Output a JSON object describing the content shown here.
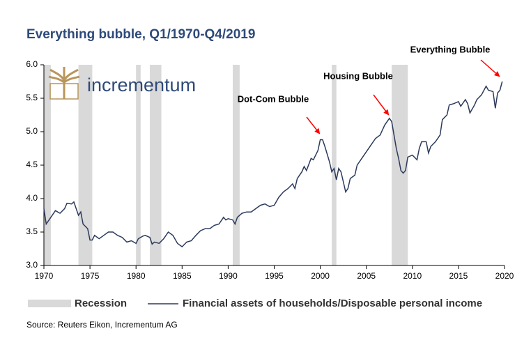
{
  "chart_data": {
    "type": "line",
    "title": "Everything bubble, Q1/1970-Q4/2019",
    "logo": "incrementum",
    "source": "Source: Reuters Eikon, Incrementum AG",
    "xlim": [
      1970,
      2020
    ],
    "xticks": [
      1970,
      1975,
      1980,
      1985,
      1990,
      1995,
      2000,
      2005,
      2010,
      2015,
      2020
    ],
    "ylim": [
      3,
      6
    ],
    "yticks": [
      {
        "value": 3,
        "label": "3.0"
      },
      {
        "value": 3.5,
        "label": "3.5"
      },
      {
        "value": 4,
        "label": "4.0"
      },
      {
        "value": 4.5,
        "label": "4.5"
      },
      {
        "value": 5,
        "label": "5.0"
      },
      {
        "value": 5.5,
        "label": "5.5"
      },
      {
        "value": 6,
        "label": "6.0"
      }
    ],
    "recession_name": "Recession",
    "recession_color": "#d9d9d9",
    "recessions": [
      [
        1970.0,
        1970.75
      ],
      [
        1973.75,
        1975.25
      ],
      [
        1980.0,
        1980.5
      ],
      [
        1981.5,
        1982.75
      ],
      [
        1990.5,
        1991.25
      ],
      [
        2001.25,
        2001.75
      ],
      [
        2007.75,
        2009.5
      ]
    ],
    "annotations": [
      "Dot-Com Bubble",
      "Housing Bubble",
      "Everything Bubble"
    ],
    "annotation_color": "#ff0000",
    "series": [
      {
        "name": "Financial assets of households/Disposable personal income",
        "color": "#2b3a5c",
        "x": [
          1970.0,
          1970.25,
          1970.75,
          1971.25,
          1971.75,
          1972.25,
          1972.5,
          1973.0,
          1973.25,
          1973.5,
          1973.75,
          1974.0,
          1974.25,
          1974.75,
          1975.0,
          1975.25,
          1975.5,
          1976.0,
          1976.5,
          1977.0,
          1977.5,
          1978.0,
          1978.5,
          1979.0,
          1979.5,
          1980.0,
          1980.25,
          1980.75,
          1981.0,
          1981.5,
          1981.75,
          1982.0,
          1982.5,
          1983.0,
          1983.5,
          1984.0,
          1984.5,
          1985.0,
          1985.5,
          1986.0,
          1986.5,
          1987.0,
          1987.5,
          1988.0,
          1988.5,
          1989.0,
          1989.5,
          1989.75,
          1990.0,
          1990.5,
          1990.75,
          1991.0,
          1991.5,
          1992.0,
          1992.5,
          1993.0,
          1993.5,
          1994.0,
          1994.5,
          1995.0,
          1995.5,
          1996.0,
          1996.5,
          1997.0,
          1997.25,
          1997.5,
          1998.0,
          1998.25,
          1998.5,
          1999.0,
          1999.25,
          1999.5,
          1999.75,
          2000.0,
          2000.25,
          2000.5,
          2001.0,
          2001.25,
          2001.5,
          2001.75,
          2002.0,
          2002.25,
          2002.5,
          2002.75,
          2003.0,
          2003.25,
          2003.75,
          2004.0,
          2004.5,
          2005.0,
          2005.5,
          2006.0,
          2006.5,
          2007.0,
          2007.5,
          2007.75,
          2008.0,
          2008.25,
          2008.5,
          2008.75,
          2009.0,
          2009.25,
          2009.5,
          2010.0,
          2010.5,
          2010.75,
          2011.0,
          2011.5,
          2011.75,
          2012.0,
          2012.5,
          2013.0,
          2013.25,
          2013.75,
          2014.0,
          2014.5,
          2015.0,
          2015.25,
          2015.75,
          2016.0,
          2016.25,
          2016.75,
          2017.0,
          2017.5,
          2018.0,
          2018.25,
          2018.75,
          2019.0,
          2019.25,
          2019.5,
          2019.75
        ],
        "values": [
          3.85,
          3.62,
          3.72,
          3.82,
          3.78,
          3.85,
          3.93,
          3.92,
          3.95,
          3.85,
          3.75,
          3.8,
          3.62,
          3.55,
          3.38,
          3.38,
          3.45,
          3.4,
          3.45,
          3.5,
          3.5,
          3.45,
          3.42,
          3.35,
          3.37,
          3.33,
          3.4,
          3.44,
          3.45,
          3.42,
          3.32,
          3.35,
          3.33,
          3.4,
          3.5,
          3.45,
          3.33,
          3.28,
          3.35,
          3.37,
          3.45,
          3.52,
          3.55,
          3.55,
          3.6,
          3.62,
          3.72,
          3.68,
          3.7,
          3.68,
          3.62,
          3.72,
          3.78,
          3.8,
          3.8,
          3.85,
          3.9,
          3.92,
          3.88,
          3.9,
          4.02,
          4.1,
          4.15,
          4.22,
          4.15,
          4.3,
          4.4,
          4.48,
          4.42,
          4.6,
          4.58,
          4.65,
          4.72,
          4.88,
          4.88,
          4.78,
          4.55,
          4.4,
          4.45,
          4.28,
          4.45,
          4.4,
          4.25,
          4.1,
          4.15,
          4.3,
          4.35,
          4.5,
          4.6,
          4.7,
          4.8,
          4.9,
          4.95,
          5.1,
          5.2,
          5.15,
          4.95,
          4.75,
          4.6,
          4.42,
          4.38,
          4.42,
          4.62,
          4.65,
          4.58,
          4.75,
          4.85,
          4.85,
          4.68,
          4.78,
          4.85,
          4.95,
          5.18,
          5.25,
          5.4,
          5.42,
          5.45,
          5.38,
          5.48,
          5.42,
          5.28,
          5.4,
          5.48,
          5.55,
          5.68,
          5.62,
          5.6,
          5.35,
          5.58,
          5.62,
          5.75
        ]
      }
    ]
  }
}
